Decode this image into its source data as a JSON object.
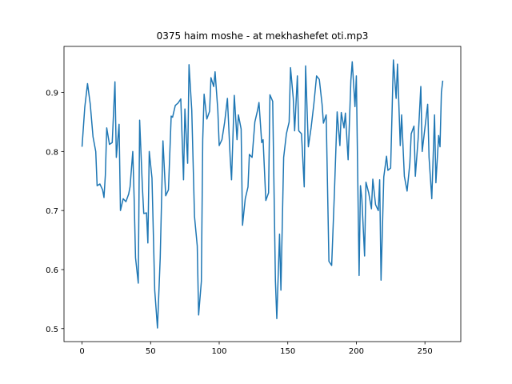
{
  "chart_data": {
    "type": "line",
    "title": "0375 haim moshe - at mekhashefet oti.mp3",
    "x": [
      0,
      2,
      4,
      6,
      8,
      10,
      11,
      13,
      15,
      16,
      17,
      18,
      20,
      22,
      24,
      25,
      27,
      28,
      30,
      32,
      34,
      35,
      37,
      38,
      39,
      41,
      42,
      44,
      45,
      47,
      48,
      49,
      51,
      53,
      55,
      57,
      59,
      61,
      63,
      65,
      66,
      68,
      70,
      72,
      74,
      75,
      77,
      78,
      80,
      82,
      84,
      85,
      87,
      88,
      89,
      91,
      93,
      94,
      96,
      97,
      99,
      100,
      102,
      104,
      106,
      108,
      109,
      111,
      113,
      114,
      116,
      117,
      119,
      121,
      122,
      124,
      126,
      128,
      129,
      131,
      132,
      134,
      136,
      137,
      139,
      141,
      142,
      144,
      145,
      147,
      149,
      151,
      152,
      154,
      155,
      157,
      158,
      160,
      162,
      163,
      165,
      167,
      169,
      171,
      173,
      175,
      176,
      178,
      180,
      182,
      184,
      186,
      188,
      189,
      191,
      192,
      194,
      196,
      197,
      199,
      200,
      202,
      203,
      204,
      206,
      207,
      209,
      211,
      212,
      214,
      216,
      217,
      218,
      220,
      222,
      223,
      225,
      227,
      229,
      230,
      232,
      233,
      235,
      237,
      239,
      240,
      242,
      243,
      245,
      247,
      248,
      250,
      252,
      253,
      255,
      257,
      258,
      260,
      261,
      262,
      263
    ],
    "series": [
      {
        "color": "#1f77b4",
        "values": [
          0.808,
          0.875,
          0.915,
          0.88,
          0.825,
          0.8,
          0.742,
          0.745,
          0.735,
          0.722,
          0.76,
          0.84,
          0.812,
          0.815,
          0.918,
          0.79,
          0.846,
          0.7,
          0.72,
          0.715,
          0.728,
          0.74,
          0.8,
          0.72,
          0.62,
          0.577,
          0.853,
          0.74,
          0.695,
          0.696,
          0.645,
          0.8,
          0.755,
          0.565,
          0.501,
          0.62,
          0.818,
          0.725,
          0.735,
          0.86,
          0.858,
          0.878,
          0.882,
          0.889,
          0.752,
          0.872,
          0.78,
          0.947,
          0.87,
          0.69,
          0.64,
          0.523,
          0.58,
          0.82,
          0.897,
          0.855,
          0.868,
          0.925,
          0.91,
          0.935,
          0.87,
          0.81,
          0.82,
          0.85,
          0.89,
          0.79,
          0.752,
          0.895,
          0.82,
          0.862,
          0.838,
          0.675,
          0.72,
          0.74,
          0.795,
          0.79,
          0.85,
          0.87,
          0.883,
          0.815,
          0.82,
          0.717,
          0.73,
          0.896,
          0.885,
          0.58,
          0.517,
          0.66,
          0.565,
          0.79,
          0.83,
          0.85,
          0.942,
          0.89,
          0.835,
          0.928,
          0.835,
          0.83,
          0.74,
          0.945,
          0.808,
          0.84,
          0.88,
          0.928,
          0.922,
          0.88,
          0.848,
          0.862,
          0.614,
          0.607,
          0.73,
          0.867,
          0.81,
          0.866,
          0.84,
          0.865,
          0.786,
          0.92,
          0.952,
          0.876,
          0.928,
          0.59,
          0.742,
          0.72,
          0.623,
          0.748,
          0.73,
          0.703,
          0.753,
          0.71,
          0.7,
          0.752,
          0.582,
          0.757,
          0.792,
          0.768,
          0.772,
          0.955,
          0.89,
          0.948,
          0.81,
          0.862,
          0.758,
          0.733,
          0.78,
          0.83,
          0.843,
          0.758,
          0.82,
          0.91,
          0.8,
          0.84,
          0.88,
          0.79,
          0.72,
          0.862,
          0.747,
          0.827,
          0.808,
          0.9,
          0.92
        ]
      }
    ],
    "xlim": [
      -13.15,
      276.15
    ],
    "ylim": [
      0.478,
      0.978
    ],
    "xticks": [
      0,
      50,
      100,
      150,
      200,
      250
    ],
    "yticks": [
      0.5,
      0.6,
      0.7,
      0.8,
      0.9
    ]
  }
}
